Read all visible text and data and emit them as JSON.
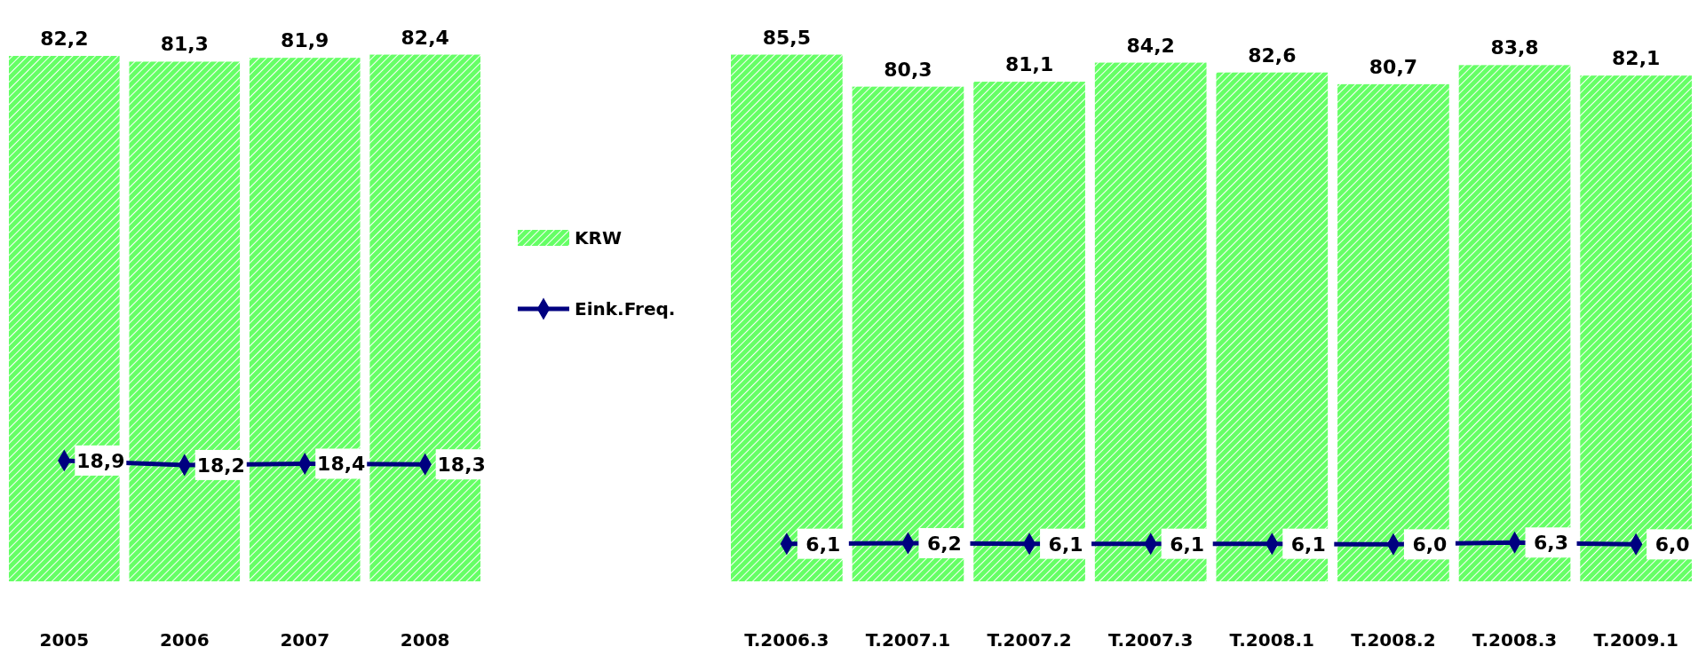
{
  "chart_data": [
    {
      "type": "bar",
      "categories": [
        "2005",
        "2006",
        "2007",
        "2008"
      ],
      "tick_labels": "x",
      "legend": "right",
      "marker": "diamond",
      "series": [
        {
          "name": "KRW",
          "color": "#66ff66",
          "values": [
            82.2,
            81.3,
            81.9,
            82.4
          ],
          "value_labels": [
            "82,2",
            "81,3",
            "81,9",
            "82,4"
          ]
        },
        {
          "name": "Eink.Freq.",
          "type": "line",
          "color": "#000080",
          "values": [
            18.9,
            18.2,
            18.4,
            18.3
          ],
          "value_labels": [
            "18,9",
            "18,2",
            "18,4",
            "18,3"
          ]
        }
      ]
    },
    {
      "type": "bar",
      "categories": [
        "T.2006.3",
        "T.2007.1",
        "T.2007.2",
        "T.2007.3",
        "T.2008.1",
        "T.2008.2",
        "T.2008.3",
        "T.2009.1"
      ],
      "tick_labels": "x",
      "marker": "diamond",
      "series": [
        {
          "color": "#66ff66",
          "values": [
            85.5,
            80.3,
            81.1,
            84.2,
            82.6,
            80.7,
            83.8,
            82.1
          ],
          "value_labels": [
            "85,5",
            "80,3",
            "81,1",
            "84,2",
            "82,6",
            "80,7",
            "83,8",
            "82,1"
          ]
        },
        {
          "type": "line",
          "color": "#000080",
          "values": [
            6.1,
            6.2,
            6.1,
            6.1,
            6.1,
            6.0,
            6.3,
            6.0
          ],
          "value_labels": [
            "6,1",
            "6,2",
            "6,1",
            "6,1",
            "6,1",
            "6,0",
            "6,3",
            "6,0"
          ]
        }
      ]
    }
  ]
}
